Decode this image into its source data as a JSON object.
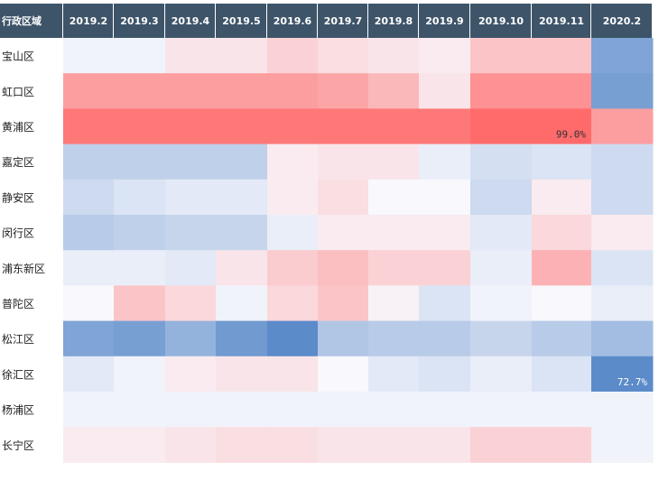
{
  "chart_data": {
    "type": "heatmap",
    "row_header_label": "行政区域",
    "columns": [
      "2019.2",
      "2019.3",
      "2019.4",
      "2019.5",
      "2019.6",
      "2019.7",
      "2019.8",
      "2019.9",
      "2019.10",
      "2019.11",
      "2020.2"
    ],
    "rows": [
      "宝山区",
      "虹口区",
      "黄浦区",
      "嘉定区",
      "静安区",
      "闵行区",
      "浦东新区",
      "普陀区",
      "松江区",
      "徐汇区",
      "杨浦区",
      "长宁区"
    ],
    "values": [
      [
        -0.05,
        -0.05,
        0.15,
        0.15,
        0.3,
        0.2,
        0.15,
        0.1,
        0.4,
        0.4,
        -0.85
      ],
      [
        0.7,
        0.7,
        0.7,
        0.7,
        0.7,
        0.65,
        0.5,
        0.15,
        0.8,
        0.8,
        -0.9
      ],
      [
        1.0,
        1.0,
        1.0,
        1.0,
        1.0,
        1.0,
        1.0,
        1.0,
        1.1,
        1.1,
        0.7
      ],
      [
        -0.4,
        -0.4,
        -0.4,
        -0.4,
        0.1,
        0.15,
        0.15,
        -0.1,
        -0.25,
        -0.2,
        -0.3
      ],
      [
        -0.3,
        -0.2,
        -0.15,
        -0.15,
        0.1,
        0.2,
        0.0,
        0.0,
        -0.3,
        0.1,
        -0.3
      ],
      [
        -0.45,
        -0.4,
        -0.35,
        -0.35,
        -0.1,
        0.1,
        0.1,
        0.1,
        -0.15,
        0.25,
        0.1
      ],
      [
        -0.1,
        -0.1,
        -0.15,
        0.15,
        0.35,
        0.45,
        0.3,
        0.3,
        -0.1,
        0.55,
        -0.2
      ],
      [
        0.0,
        0.4,
        0.25,
        -0.05,
        0.25,
        0.4,
        0.05,
        -0.2,
        -0.05,
        0.0,
        -0.1
      ],
      [
        -0.85,
        -0.9,
        -0.7,
        -0.95,
        -1.1,
        -0.5,
        -0.45,
        -0.45,
        -0.35,
        -0.45,
        -0.6
      ],
      [
        -0.15,
        -0.05,
        0.1,
        0.15,
        0.15,
        0.0,
        -0.15,
        -0.2,
        -0.1,
        -0.2,
        -1.15
      ],
      [
        -0.05,
        -0.05,
        -0.05,
        -0.05,
        -0.05,
        -0.05,
        -0.05,
        -0.05,
        -0.05,
        -0.05,
        -0.05
      ],
      [
        0.1,
        0.1,
        0.15,
        0.2,
        0.2,
        0.15,
        0.15,
        0.15,
        0.3,
        0.3,
        -0.05
      ]
    ],
    "annotations": [
      {
        "row": 2,
        "col": 9,
        "text": "99.0%"
      },
      {
        "row": 9,
        "col": 10,
        "text": "72.7%"
      }
    ],
    "legend": "none",
    "grid": false
  },
  "colors": {
    "header_bg": "#3e5469",
    "header_text": "#ffffff",
    "positive_max": "#ff6b6b",
    "negative_max": "#5b8bc9",
    "neutral": "#f8f8fd"
  }
}
